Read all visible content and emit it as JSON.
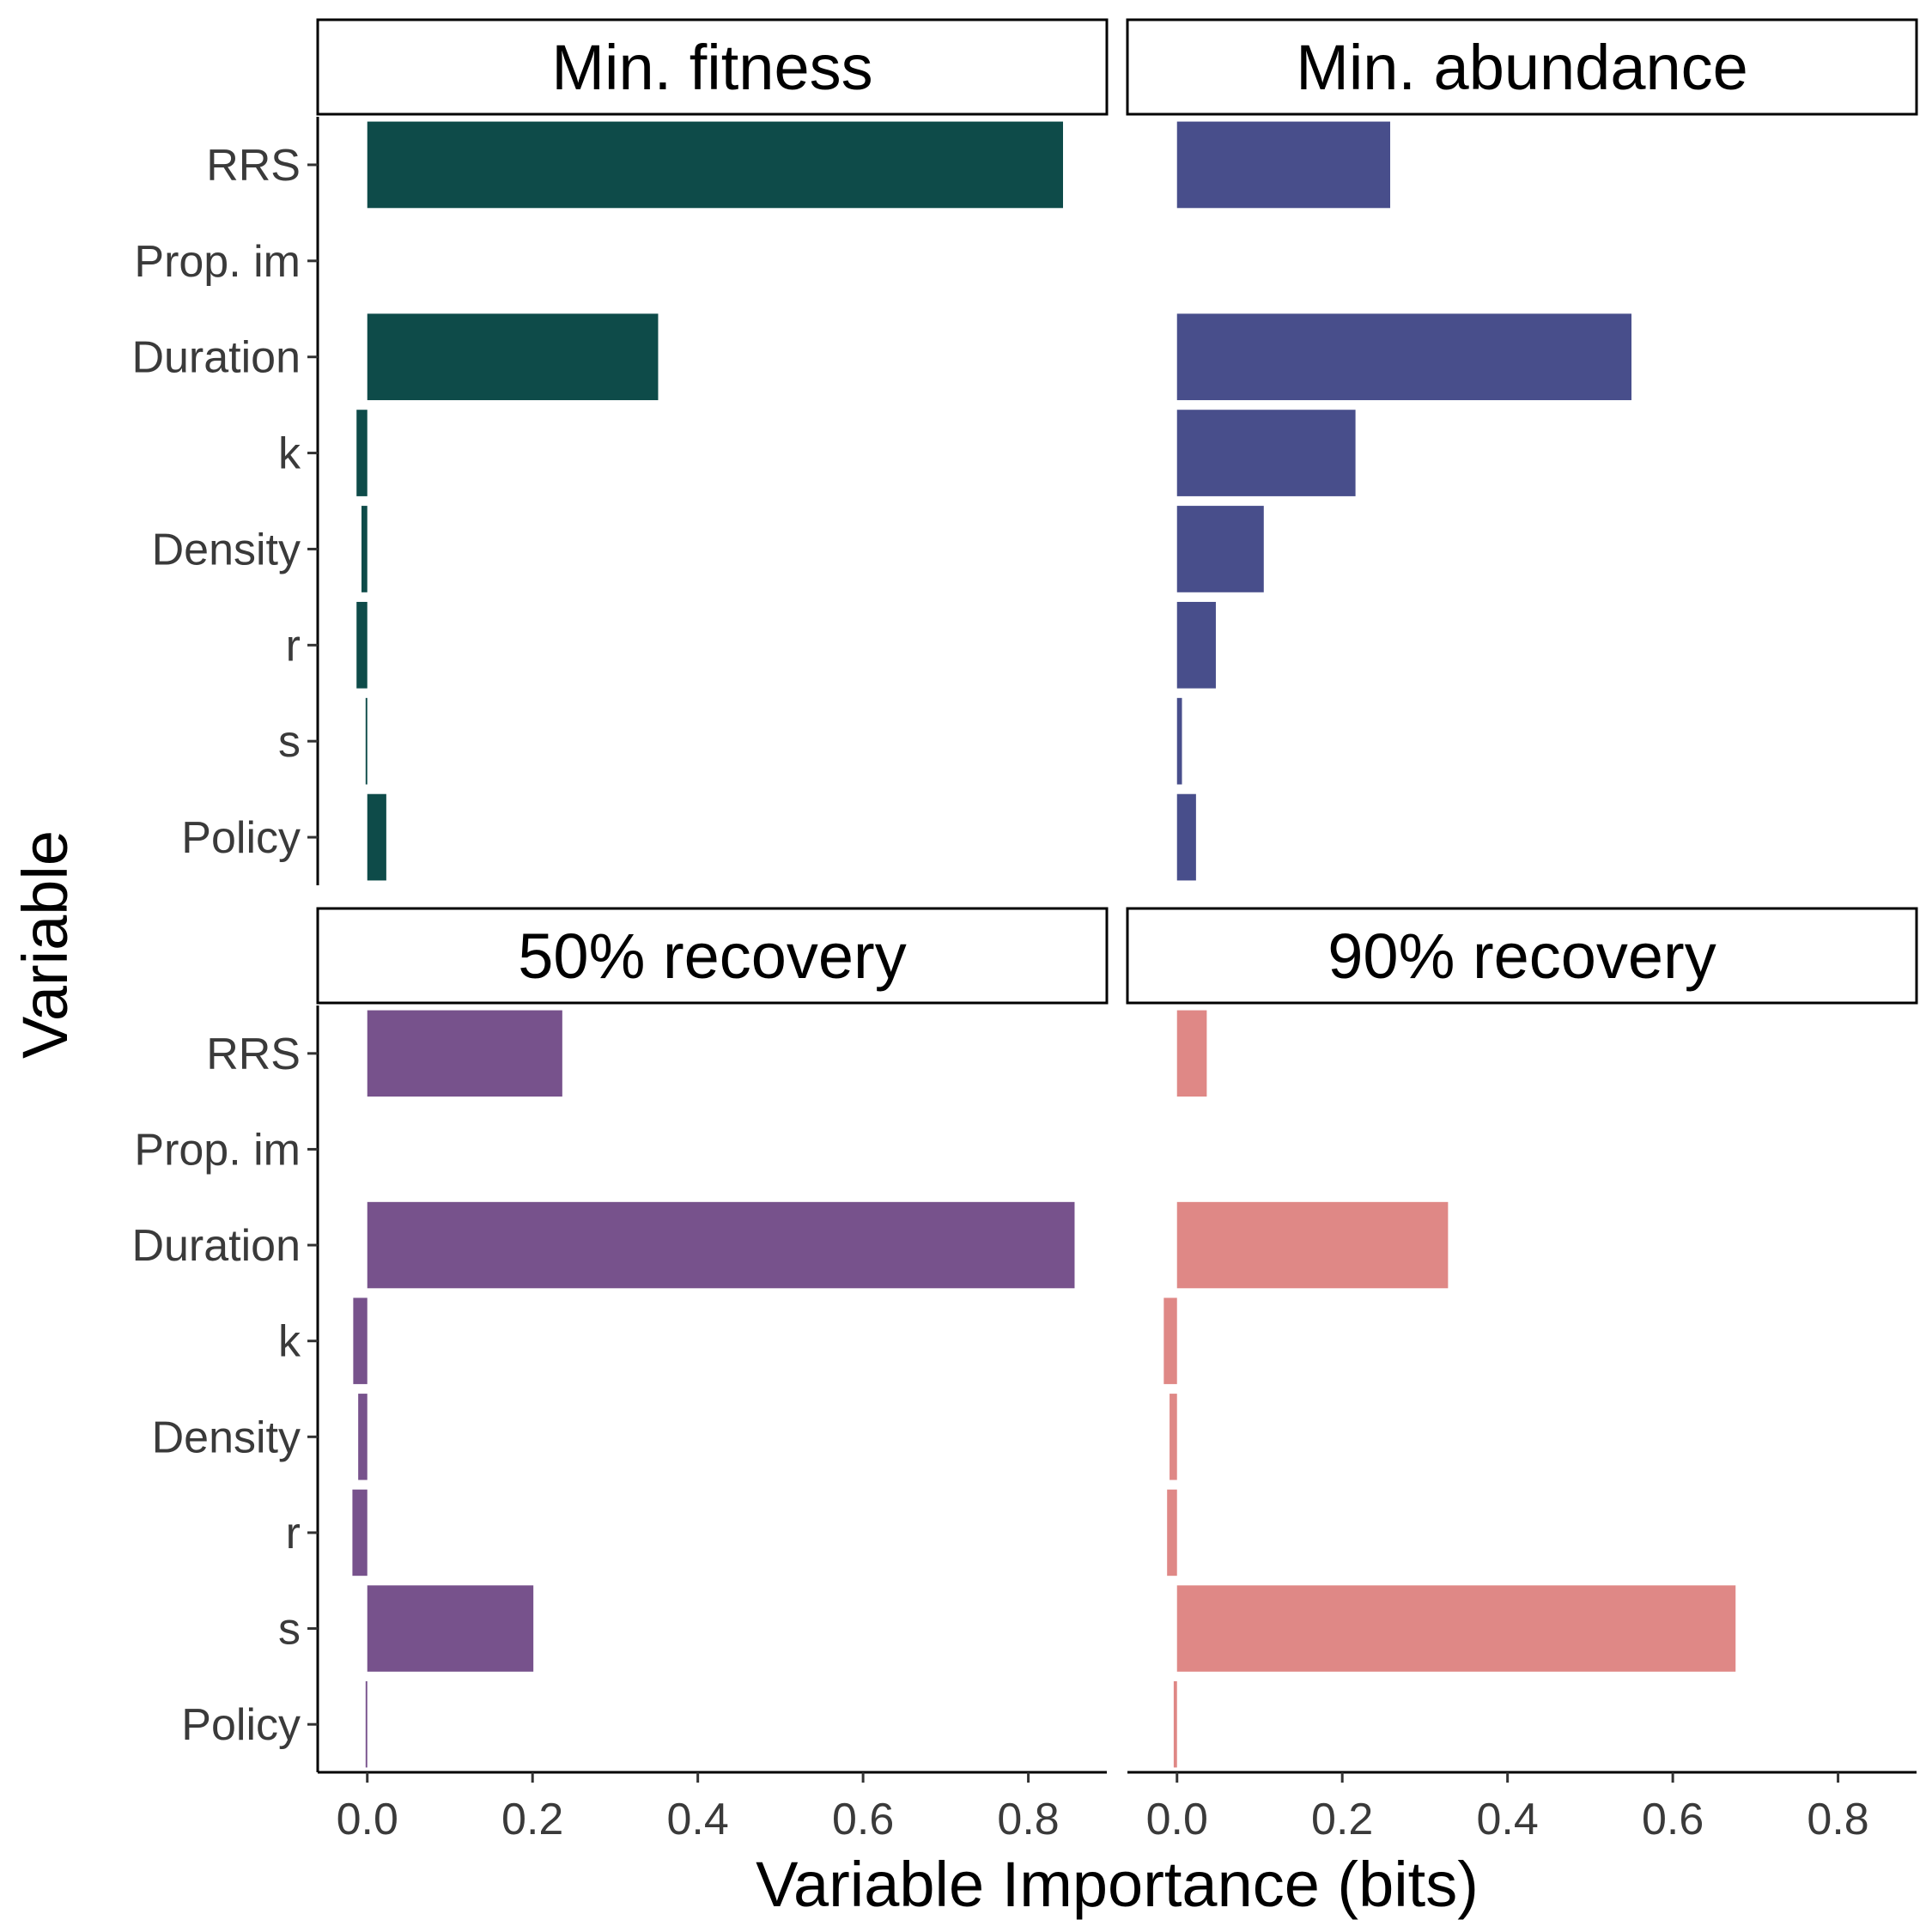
{
  "chart_data": {
    "type": "bar",
    "orientation": "horizontal",
    "xlabel": "Variable Importance (bits)",
    "ylabel": "Variable",
    "xlim": [
      -0.06,
      0.895
    ],
    "x_ticks": [
      0.0,
      0.2,
      0.4,
      0.6,
      0.8
    ],
    "x_tick_labels": [
      "0.0",
      "0.2",
      "0.4",
      "0.6",
      "0.8"
    ],
    "categories": [
      "RRS",
      "Prop. im",
      "Duration",
      "k",
      "Density",
      "r",
      "s",
      "Policy"
    ],
    "grid": false,
    "legend": "none",
    "panels": [
      {
        "title": "Min. fitness",
        "color": "#0e4b49",
        "values": [
          0.842,
          0.0,
          0.352,
          -0.013,
          -0.007,
          -0.013,
          -0.002,
          0.023
        ]
      },
      {
        "title": "Min. abundance",
        "color": "#484e8b",
        "values": [
          0.258,
          0.0,
          0.55,
          0.216,
          0.105,
          0.047,
          0.006,
          0.023
        ]
      },
      {
        "title": "50% recovery",
        "color": "#77528c",
        "values": [
          0.236,
          0.0,
          0.856,
          -0.017,
          -0.011,
          -0.018,
          0.201,
          -0.002
        ]
      },
      {
        "title": "90% recovery",
        "color": "#df8886",
        "values": [
          0.036,
          0.0,
          0.328,
          -0.016,
          -0.009,
          -0.012,
          0.676,
          -0.004
        ]
      }
    ]
  }
}
